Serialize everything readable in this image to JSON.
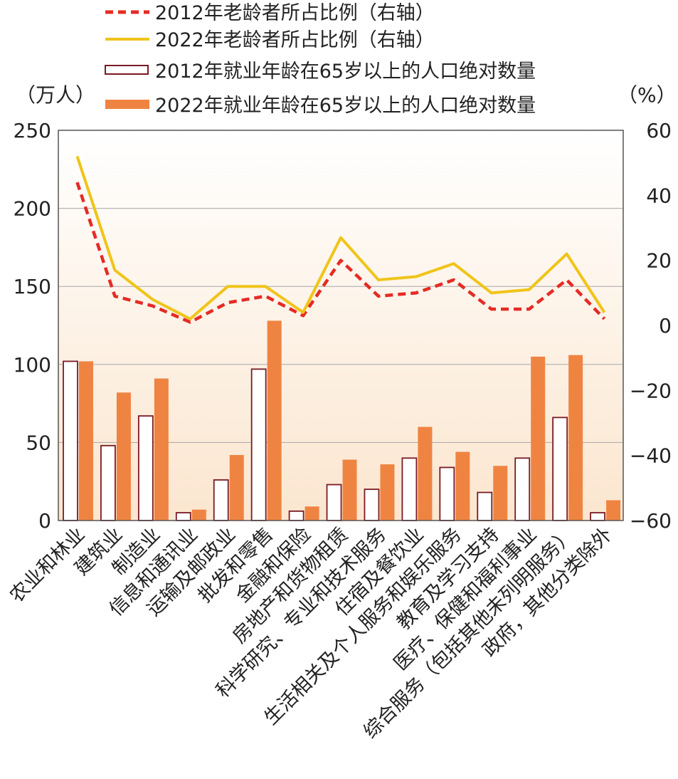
{
  "chart_data": {
    "type": "bar",
    "categories": [
      "农业和林业",
      "建筑业",
      "制造业",
      "信息和通讯业",
      "运输及邮政业",
      "批发和零售",
      "金融和保险",
      "房地产和货物租赁",
      "科学研究、专业和技术服务",
      "住宿及餐饮业",
      "生活相关及个人服务和娱乐服务",
      "教育及学习支持",
      "医疗、保健和福利事业",
      "综合服务（包括其他未列明服务）",
      "政府，其他分类除外"
    ],
    "series": [
      {
        "name": "2012年就业年龄在65岁以上的人口绝对数量",
        "kind": "bar",
        "axis": "left",
        "style": "outline",
        "values": [
          102,
          48,
          67,
          5,
          26,
          97,
          6,
          23,
          20,
          40,
          34,
          18,
          40,
          66,
          5
        ]
      },
      {
        "name": "2022年就业年龄在65岁以上的人口绝对数量",
        "kind": "bar",
        "axis": "left",
        "style": "filled",
        "values": [
          102,
          82,
          91,
          7,
          42,
          128,
          9,
          39,
          36,
          60,
          44,
          35,
          105,
          106,
          13
        ]
      },
      {
        "name": "2012年老龄者所占比例（右轴）",
        "kind": "line",
        "axis": "right",
        "style": "dashed",
        "values": [
          44,
          9,
          6,
          1,
          7,
          9,
          3,
          20,
          9,
          10,
          14,
          5,
          5,
          14,
          2
        ]
      },
      {
        "name": "2022年老龄者所占比例（右轴）",
        "kind": "line",
        "axis": "right",
        "style": "solid",
        "values": [
          52,
          17,
          8,
          2,
          12,
          12,
          4,
          27,
          14,
          15,
          19,
          10,
          11,
          22,
          4
        ]
      }
    ],
    "y_left": {
      "unit": "（万人）",
      "ylim": [
        0,
        250
      ],
      "ticks": [
        "0",
        "50",
        "100",
        "150",
        "200",
        "250"
      ]
    },
    "y_right": {
      "unit": "（%）",
      "ylim": [
        -60,
        60
      ],
      "ticks": [
        "−60",
        "−40",
        "−20",
        "0",
        "20",
        "40",
        "60"
      ]
    },
    "grid": true,
    "legend_position": "top"
  },
  "colors": {
    "bar_2012_outline": "#7a1a24",
    "bar_2022_fill": "#ef8442",
    "line_2012": "#e52b24",
    "line_2022": "#f0c419",
    "plot_bg_top": "#ffffff",
    "plot_bg_bottom": "#fbe6cf",
    "grid": "#a8a8a8",
    "frame": "#555555"
  }
}
